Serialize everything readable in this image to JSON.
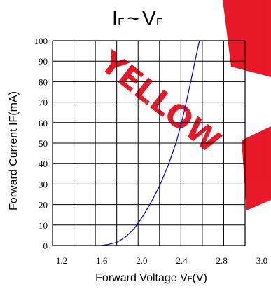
{
  "chart_data": {
    "type": "line",
    "title": {
      "main_a": "I",
      "sub_a": "F",
      "tilde": "~",
      "main_b": "V",
      "sub_b": "F"
    },
    "xlabel": {
      "main": "Forward Voltage V",
      "sub": "F",
      "tail": "(V)"
    },
    "ylabel": "Forward Current IF(mA)",
    "xlim": [
      1.2,
      3.0
    ],
    "ylim": [
      0,
      100
    ],
    "x_ticks": [
      "1.2",
      "1.6",
      "2.0",
      "2.4",
      "2.8",
      "3.0"
    ],
    "y_ticks": [
      "0",
      "10",
      "20",
      "30",
      "40",
      "50",
      "60",
      "70",
      "80",
      "90",
      "100"
    ],
    "grid": true,
    "series": [
      {
        "color": "#0000cc",
        "x": [
          1.65,
          1.72,
          1.8,
          1.88,
          1.96,
          2.04,
          2.12,
          2.2,
          2.28,
          2.36,
          2.42,
          2.48,
          2.54,
          2.59
        ],
        "y": [
          0,
          0.5,
          1.5,
          4,
          8,
          14,
          21,
          29,
          39,
          51,
          63,
          77,
          92,
          104
        ]
      }
    ]
  },
  "watermark": {
    "text": "YELLOW",
    "color": "#e60012"
  }
}
